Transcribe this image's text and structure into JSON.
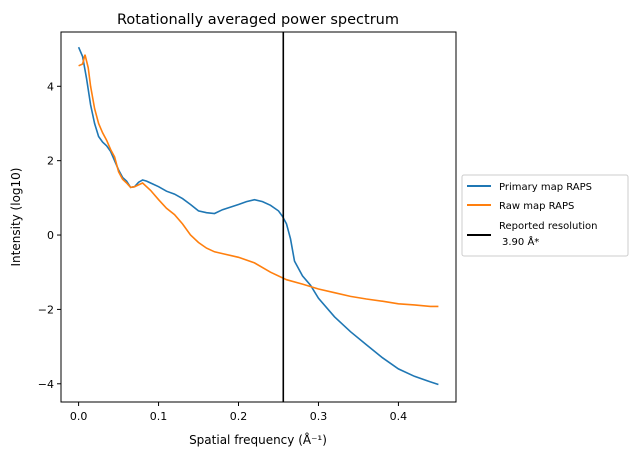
{
  "chart_data": {
    "type": "line",
    "title": "Rotationally averaged power spectrum",
    "xlabel": "Spatial frequency (Å⁻¹)",
    "ylabel": "Intensity (log10)",
    "xlim": [
      -0.022,
      0.472
    ],
    "ylim": [
      -4.49,
      5.46
    ],
    "xticks": [
      0.0,
      0.1,
      0.2,
      0.3,
      0.4
    ],
    "xtick_labels": [
      "0.0",
      "0.1",
      "0.2",
      "0.3",
      "0.4"
    ],
    "yticks": [
      4,
      2,
      0,
      -2,
      -4
    ],
    "ytick_labels": [
      "4",
      "2",
      "0",
      "−2",
      "−4"
    ],
    "grid": false,
    "legend_placement": "outside-right",
    "series": [
      {
        "name": "Primary map RAPS",
        "color": "#1f77b4",
        "x": [
          0,
          0.005,
          0.01,
          0.015,
          0.02,
          0.025,
          0.03,
          0.035,
          0.04,
          0.045,
          0.05,
          0.055,
          0.06,
          0.065,
          0.07,
          0.075,
          0.08,
          0.085,
          0.09,
          0.1,
          0.11,
          0.12,
          0.13,
          0.14,
          0.15,
          0.16,
          0.17,
          0.18,
          0.19,
          0.2,
          0.21,
          0.22,
          0.23,
          0.24,
          0.25,
          0.255,
          0.26,
          0.265,
          0.27,
          0.28,
          0.29,
          0.3,
          0.32,
          0.34,
          0.36,
          0.38,
          0.4,
          0.42,
          0.44,
          0.45
        ],
        "y": [
          5.05,
          4.8,
          4.2,
          3.5,
          3.0,
          2.65,
          2.5,
          2.4,
          2.25,
          2.0,
          1.75,
          1.55,
          1.45,
          1.28,
          1.3,
          1.42,
          1.48,
          1.45,
          1.4,
          1.3,
          1.18,
          1.1,
          0.98,
          0.82,
          0.65,
          0.6,
          0.58,
          0.68,
          0.75,
          0.82,
          0.9,
          0.95,
          0.9,
          0.8,
          0.65,
          0.5,
          0.3,
          -0.1,
          -0.7,
          -1.1,
          -1.35,
          -1.7,
          -2.2,
          -2.6,
          -2.95,
          -3.3,
          -3.6,
          -3.8,
          -3.95,
          -4.02
        ]
      },
      {
        "name": "Raw map RAPS",
        "color": "#ff7f0e",
        "x": [
          0,
          0.005,
          0.008,
          0.012,
          0.015,
          0.02,
          0.025,
          0.03,
          0.035,
          0.04,
          0.045,
          0.05,
          0.055,
          0.06,
          0.065,
          0.07,
          0.08,
          0.09,
          0.1,
          0.11,
          0.12,
          0.13,
          0.14,
          0.15,
          0.16,
          0.17,
          0.18,
          0.2,
          0.22,
          0.24,
          0.26,
          0.28,
          0.3,
          0.32,
          0.34,
          0.36,
          0.38,
          0.4,
          0.42,
          0.44,
          0.45
        ],
        "y": [
          4.55,
          4.6,
          4.85,
          4.5,
          4.0,
          3.4,
          3.0,
          2.75,
          2.55,
          2.3,
          2.1,
          1.7,
          1.5,
          1.4,
          1.28,
          1.3,
          1.4,
          1.2,
          0.95,
          0.72,
          0.55,
          0.3,
          0.0,
          -0.2,
          -0.35,
          -0.45,
          -0.5,
          -0.6,
          -0.75,
          -1.0,
          -1.2,
          -1.32,
          -1.45,
          -1.55,
          -1.65,
          -1.72,
          -1.78,
          -1.85,
          -1.88,
          -1.92,
          -1.92
        ]
      }
    ],
    "vline": {
      "x": 0.256,
      "color": "#000000",
      "name": "Reported resolution",
      "label_line2": "3.90 Å*"
    }
  }
}
